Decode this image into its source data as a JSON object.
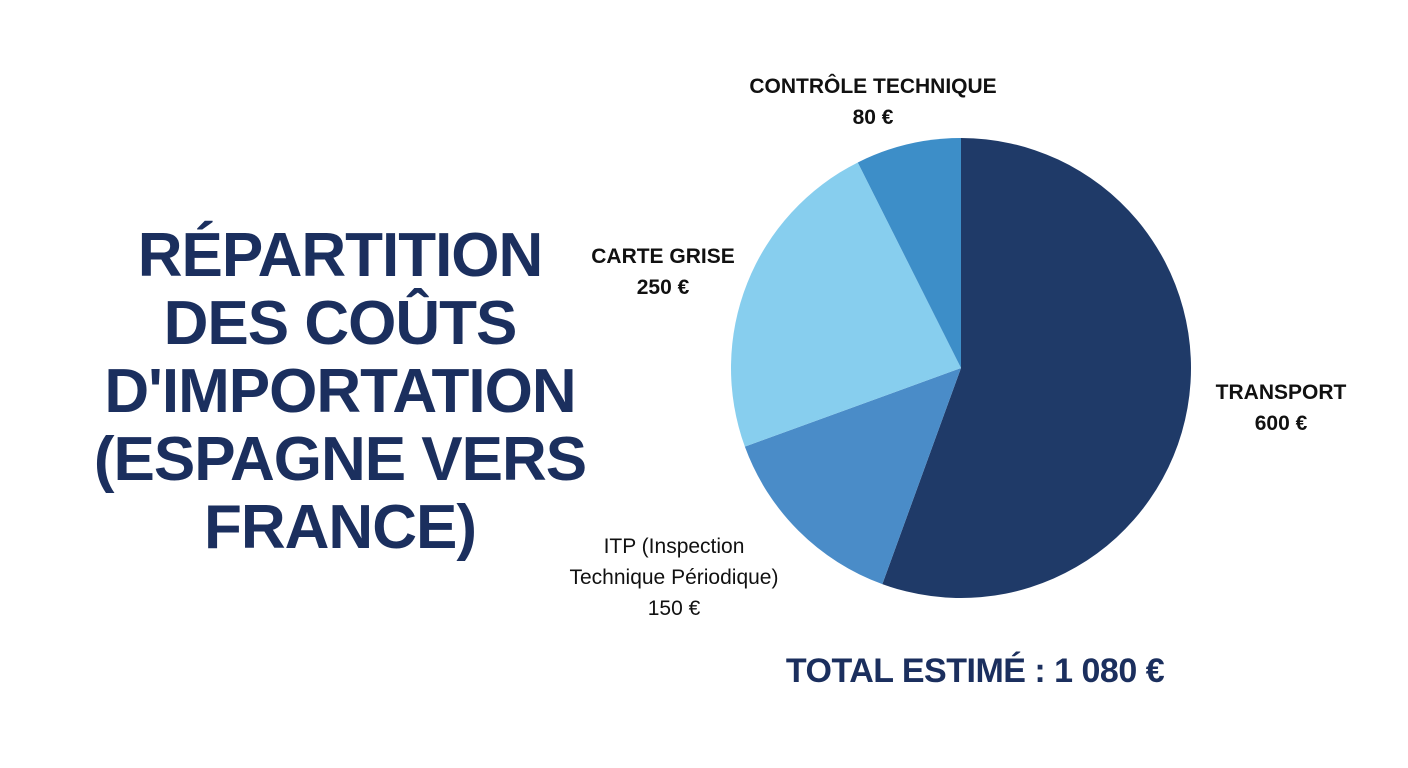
{
  "title_lines": [
    "RÉPARTITION",
    "DES COÛTS",
    "D'IMPORTATION",
    "(ESPAGNE VERS",
    "FRANCE)"
  ],
  "chart_data": {
    "type": "pie",
    "start_angle_deg": 0,
    "direction": "clockwise",
    "slices": [
      {
        "name": "TRANSPORT",
        "label_lines": [
          "TRANSPORT"
        ],
        "value": 600,
        "value_label": "600 €",
        "color": "#1f3a68"
      },
      {
        "name": "ITP (Inspection Technique Périodique)",
        "label_lines": [
          "ITP (Inspection",
          "Technique Périodique)"
        ],
        "value": 150,
        "value_label": "150 €",
        "color": "#4a8cc8"
      },
      {
        "name": "CARTE GRISE",
        "label_lines": [
          "CARTE GRISE"
        ],
        "value": 250,
        "value_label": "250 €",
        "color": "#87ceee"
      },
      {
        "name": "CONTRÔLE TECHNIQUE",
        "label_lines": [
          "CONTRÔLE TECHNIQUE"
        ],
        "value": 80,
        "value_label": "80 €",
        "color": "#3d8ec8"
      }
    ]
  },
  "total_label": "TOTAL ESTIMÉ : 1 080 €"
}
